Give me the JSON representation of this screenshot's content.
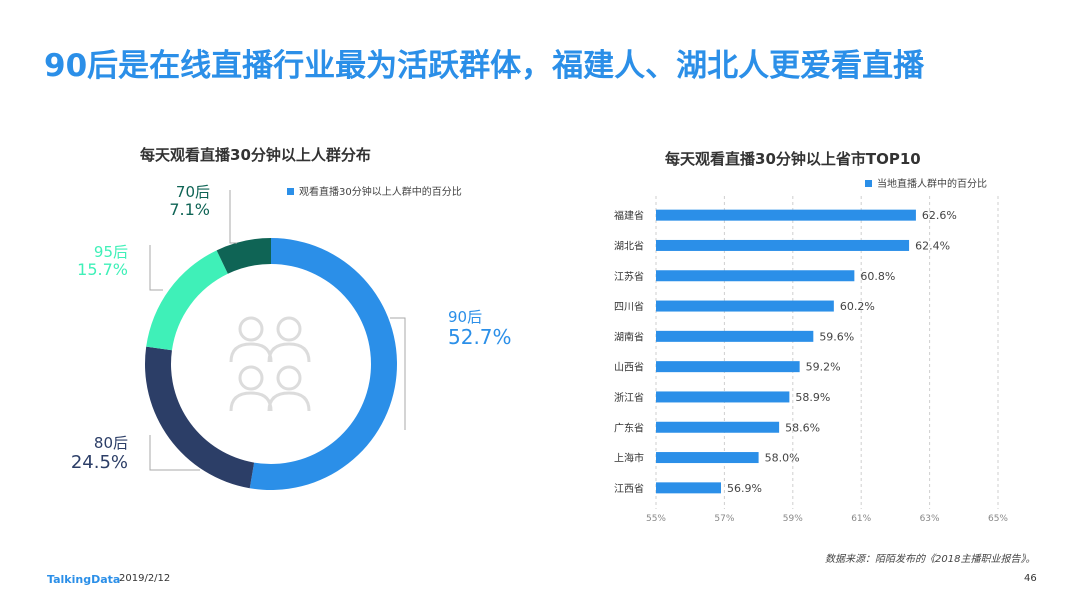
{
  "page": {
    "title": "90后是在线直播行业最为活跃群体，福建人、湖北人更爱看直播",
    "source": "数据来源：陌陌发布的《2018主播职业报告》。",
    "brand": "TalkingData",
    "date": "2019/2/12",
    "page_number": "46"
  },
  "chart_data": [
    {
      "type": "pie",
      "title": "每天观看直播30分钟以上人群分布",
      "legend": "观看直播30分钟以上人群中的百分比",
      "slices": [
        {
          "label": "90后",
          "value": 52.7,
          "display": "52.7%",
          "color": "#2b8fe8"
        },
        {
          "label": "80后",
          "value": 24.5,
          "display": "24.5%",
          "color": "#2c3e67"
        },
        {
          "label": "95后",
          "value": 15.7,
          "display": "15.7%",
          "color": "#3ff0b8"
        },
        {
          "label": "70后",
          "value": 7.1,
          "display": "7.1%",
          "color": "#0f6455"
        }
      ],
      "center_icon": "people-group-icon"
    },
    {
      "type": "bar",
      "orientation": "horizontal",
      "title": "每天观看直播30分钟以上省市TOP10",
      "legend": "当地直播人群中的百分比",
      "categories": [
        "福建省",
        "湖北省",
        "江苏省",
        "四川省",
        "湖南省",
        "山西省",
        "浙江省",
        "广东省",
        "上海市",
        "江西省"
      ],
      "values": [
        62.6,
        62.4,
        60.8,
        60.2,
        59.6,
        59.2,
        58.9,
        58.6,
        58.0,
        56.9
      ],
      "labels": [
        "62.6%",
        "62.4%",
        "60.8%",
        "60.2%",
        "59.6%",
        "59.2%",
        "58.9%",
        "58.6%",
        "58.0%",
        "56.9%"
      ],
      "xlim": [
        55,
        65
      ],
      "xticks": [
        "55%",
        "57%",
        "59%",
        "61%",
        "63%",
        "65%"
      ],
      "xtick_values": [
        55,
        57,
        59,
        61,
        63,
        65
      ],
      "color": "#2b8fe8"
    }
  ]
}
